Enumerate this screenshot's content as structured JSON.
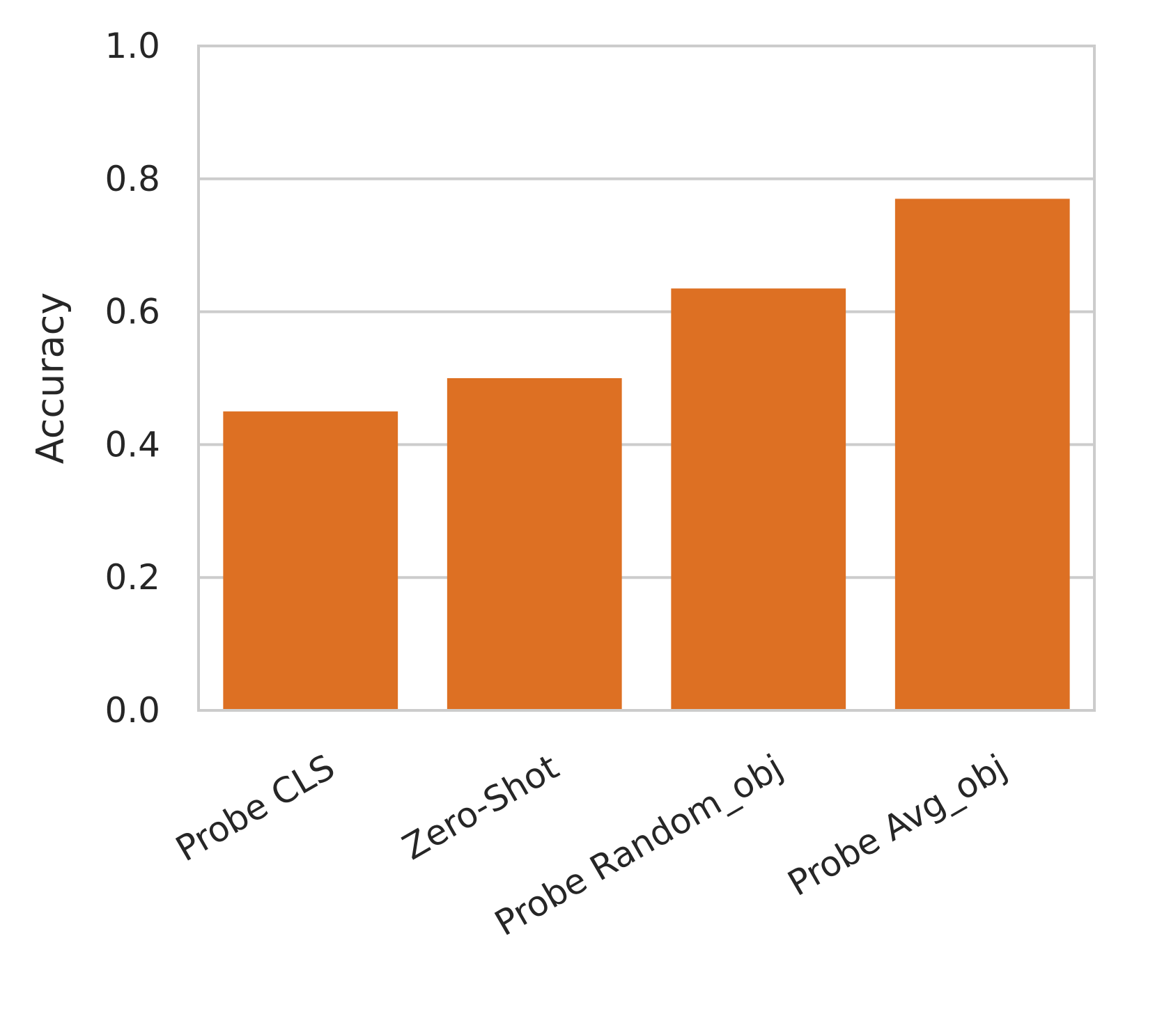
{
  "chart_data": {
    "type": "bar",
    "title": "",
    "xlabel": "",
    "ylabel": "Accuracy",
    "categories": [
      "Probe CLS",
      "Zero-Shot",
      "Probe Random_obj",
      "Probe Avg_obj"
    ],
    "values": [
      0.45,
      0.5,
      0.635,
      0.77
    ],
    "ylim": [
      0.0,
      1.0
    ],
    "yticks": [
      "0.0",
      "0.2",
      "0.4",
      "0.6",
      "0.8",
      "1.0"
    ],
    "grid": true,
    "grid_axis": "y",
    "x_tick_rotation_deg": 30,
    "colors": {
      "bar": "#dd7023",
      "grid": "#cccccc",
      "frame": "#cccccc",
      "text": "#262626"
    }
  }
}
